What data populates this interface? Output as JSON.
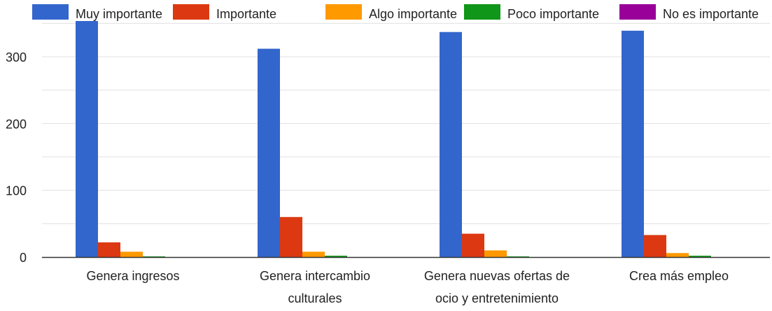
{
  "chart_data": {
    "type": "bar",
    "title": "",
    "xlabel": "",
    "ylabel": "",
    "categories": [
      [
        "Genera ingresos"
      ],
      [
        "Genera intercambio",
        "culturales"
      ],
      [
        "Genera nuevas ofertas de",
        "ocio y entretenimiento"
      ],
      [
        "Crea más empleo"
      ]
    ],
    "series": [
      {
        "name": "Muy importante",
        "color": "#3366cc",
        "values": [
          355,
          312,
          337,
          339
        ]
      },
      {
        "name": "Importante",
        "color": "#dc3912",
        "values": [
          22,
          60,
          35,
          33
        ]
      },
      {
        "name": "Algo importante",
        "color": "#ff9900",
        "values": [
          8,
          8,
          10,
          6
        ]
      },
      {
        "name": "Poco importante",
        "color": "#109618",
        "values": [
          1,
          2,
          1,
          2
        ]
      },
      {
        "name": "No es importante",
        "color": "#990099",
        "values": [
          0,
          0,
          0,
          0
        ]
      }
    ],
    "yticks": [
      0,
      100,
      200,
      300
    ],
    "ylim": [
      0,
      350
    ],
    "grid": true,
    "legend_position": "top"
  }
}
